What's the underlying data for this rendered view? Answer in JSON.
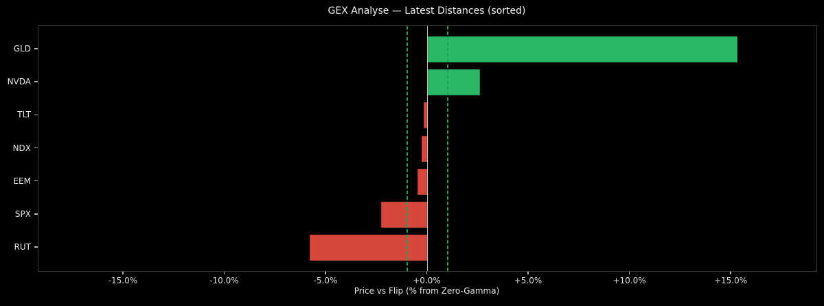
{
  "title": "GEX Analyse — Latest Distances (sorted)",
  "chart_data": {
    "type": "bar",
    "orientation": "horizontal",
    "title": "GEX Analyse — Latest Distances (sorted)",
    "xlabel": "Price vs Flip (% from Zero-Gamma)",
    "ylabel": "",
    "categories": [
      "GLD",
      "NVDA",
      "TLT",
      "NDX",
      "EEM",
      "SPX",
      "RUT"
    ],
    "values": [
      15.3,
      2.6,
      -0.2,
      -0.3,
      -0.5,
      -2.3,
      -5.8
    ],
    "value_unit": "percent",
    "xlim": [
      -19.2,
      19.2
    ],
    "xticks": [
      {
        "value": -15,
        "label": "-15.0%"
      },
      {
        "value": -10,
        "label": "-10.0%"
      },
      {
        "value": -5,
        "label": "-5.0%"
      },
      {
        "value": 0,
        "label": "+0.0%"
      },
      {
        "value": 5,
        "label": "+5.0%"
      },
      {
        "value": 10,
        "label": "+10.0%"
      },
      {
        "value": 15,
        "label": "+15.0%"
      }
    ],
    "reference_lines": {
      "zero_line": 0.0,
      "dashed_lines": [
        -1.0,
        1.0
      ]
    },
    "grid": false,
    "legend": null,
    "colors": {
      "positive_bar": "#2bb866",
      "positive_bar_edge": "#1e9152",
      "negative_bar": "#d8473c",
      "negative_bar_edge": "#b03a30",
      "dashed_line": "#1fa35f",
      "zero_line": "#c8c8c8",
      "background": "#000000",
      "text": "#e8e8e8",
      "spine": "#3c3c3c",
      "tick": "#b5b5b5"
    }
  }
}
